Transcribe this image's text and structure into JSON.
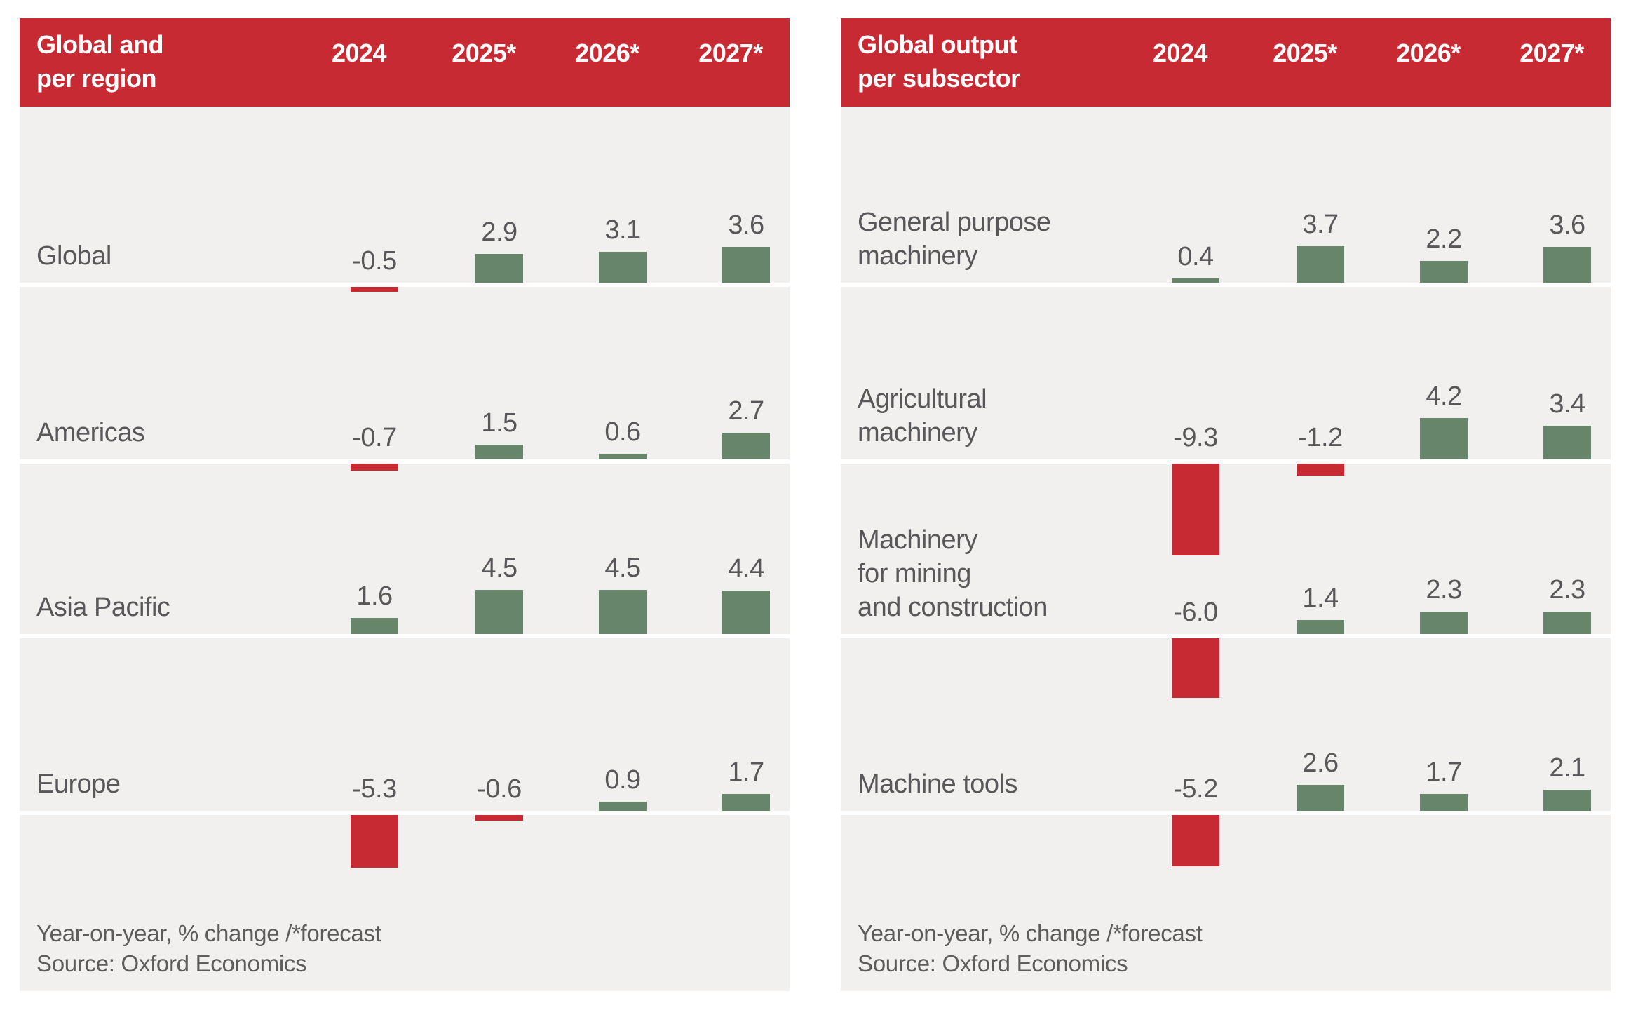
{
  "colors": {
    "header_red": "#c72a33",
    "bar_negative": "#c72a33",
    "bar_positive": "#67856b",
    "panel_background": "#f1f0ee",
    "text": "#58585a",
    "footnote_text": "#5d5c59",
    "baseline_white": "#ffffff"
  },
  "chart_data": [
    {
      "type": "bar",
      "title": "Global and per region",
      "title_lines": [
        "Global and",
        "per region"
      ],
      "categories": [
        "2024",
        "2025*",
        "2026*",
        "2027*"
      ],
      "footnote": "Year-on-year, % change /*forecast",
      "source": "Source: Oxford Economics",
      "ylabel": "Year-on-year % change",
      "axis": {
        "zero_baseline": true,
        "gridlines": false,
        "legend": "none"
      },
      "series": [
        {
          "name": "Global",
          "name_lines": [
            "Global"
          ],
          "values": [
            -0.5,
            2.9,
            3.1,
            3.6
          ],
          "display": [
            "-0.5",
            "2.9",
            "3.1",
            "3.6"
          ]
        },
        {
          "name": "Americas",
          "name_lines": [
            "Americas"
          ],
          "values": [
            -0.7,
            1.5,
            0.6,
            2.7
          ],
          "display": [
            "-0.7",
            "1.5",
            "0.6",
            "2.7"
          ]
        },
        {
          "name": "Asia Pacific",
          "name_lines": [
            "Asia Pacific"
          ],
          "values": [
            1.6,
            4.5,
            4.5,
            4.4
          ],
          "display": [
            "1.6",
            "4.5",
            "4.5",
            "4.4"
          ]
        },
        {
          "name": "Europe",
          "name_lines": [
            "Europe"
          ],
          "values": [
            -5.3,
            -0.6,
            0.9,
            1.7
          ],
          "display": [
            "-5.3",
            "-0.6",
            "0.9",
            "1.7"
          ]
        }
      ]
    },
    {
      "type": "bar",
      "title": "Global output per subsector",
      "title_lines": [
        "Global output",
        "per subsector"
      ],
      "categories": [
        "2024",
        "2025*",
        "2026*",
        "2027*"
      ],
      "footnote": "Year-on-year, % change /*forecast",
      "source": "Source: Oxford Economics",
      "ylabel": "Year-on-year % change",
      "axis": {
        "zero_baseline": true,
        "gridlines": false,
        "legend": "none"
      },
      "series": [
        {
          "name": "General purpose machinery",
          "name_lines": [
            "General purpose",
            "machinery"
          ],
          "values": [
            0.4,
            3.7,
            2.2,
            3.6
          ],
          "display": [
            "0.4",
            "3.7",
            "2.2",
            "3.6"
          ]
        },
        {
          "name": "Agricultural machinery",
          "name_lines": [
            "Agricultural",
            "machinery"
          ],
          "values": [
            -9.3,
            -1.2,
            4.2,
            3.4
          ],
          "display": [
            "-9.3",
            "-1.2",
            "4.2",
            "3.4"
          ]
        },
        {
          "name": "Machinery for mining and construction",
          "name_lines": [
            "Machinery",
            "for mining",
            "and construction"
          ],
          "values": [
            -6.0,
            1.4,
            2.3,
            2.3
          ],
          "display": [
            "-6.0",
            "1.4",
            "2.3",
            "2.3"
          ]
        },
        {
          "name": "Machine tools",
          "name_lines": [
            "Machine tools"
          ],
          "values": [
            -5.2,
            2.6,
            1.7,
            2.1
          ],
          "display": [
            "-5.2",
            "2.6",
            "1.7",
            "2.1"
          ]
        }
      ]
    }
  ]
}
